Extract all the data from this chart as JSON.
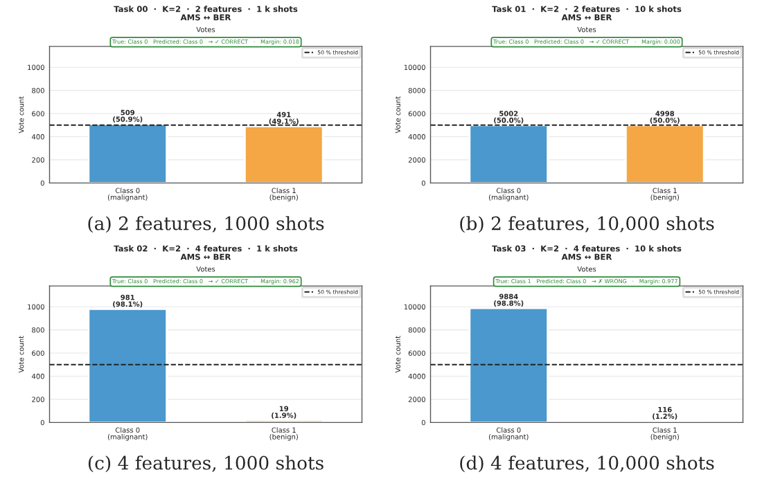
{
  "chart_data": [
    {
      "type": "bar",
      "title": "Task 00  ·  K=2  ·  2 features  ·  1 k shots\nAMS ↔ BER",
      "subtitle": "Votes",
      "ylabel": "Vote count",
      "categories": [
        "Class 0\n(malignant)",
        "Class 1\n(benign)"
      ],
      "values": [
        509,
        491
      ],
      "colors": [
        "#4a98cd",
        "#f4a744"
      ],
      "value_labels": [
        "509\n(50.9%)",
        "491\n(49.1%)"
      ],
      "ylim": [
        0,
        1180
      ],
      "yticks": [
        0,
        200,
        400,
        600,
        800,
        1000
      ],
      "grid": "y",
      "legend": "top right",
      "ref_lines": [
        {
          "axis": "y",
          "value": 500,
          "label": "50 % threshold",
          "color": "#222222",
          "line_style": "dashed"
        }
      ],
      "annotations": [
        {
          "text": "True: Class 0   Predicted: Class 0   → ✓ CORRECT   ·   Margin: 0.018"
        },
        "(a) 2 features, 1000 shots"
      ]
    },
    {
      "type": "bar",
      "title": "Task 01  ·  K=2  ·  2 features  ·  10 k shots\nAMS ↔ BER",
      "subtitle": "Votes",
      "ylabel": "Vote count",
      "categories": [
        "Class 0\n(malignant)",
        "Class 1\n(benign)"
      ],
      "values": [
        5002,
        4998
      ],
      "colors": [
        "#4a98cd",
        "#f4a744"
      ],
      "value_labels": [
        "5002\n(50.0%)",
        "4998\n(50.0%)"
      ],
      "ylim": [
        0,
        11800
      ],
      "yticks": [
        0,
        2000,
        4000,
        6000,
        8000,
        10000
      ],
      "grid": "y",
      "legend": "top right",
      "ref_lines": [
        {
          "axis": "y",
          "value": 5000,
          "label": "50 % threshold",
          "color": "#222222",
          "line_style": "dashed"
        }
      ],
      "annotations": [
        {
          "text": "True: Class 0   Predicted: Class 0   → ✓ CORRECT   ·   Margin: 0.000"
        },
        "(b) 2 features, 10,000 shots"
      ]
    },
    {
      "type": "bar",
      "title": "Task 02  ·  K=2  ·  4 features  ·  1 k shots\nAMS ↔ BER",
      "subtitle": "Votes",
      "ylabel": "Vote count",
      "categories": [
        "Class 0\n(malignant)",
        "Class 1\n(benign)"
      ],
      "values": [
        981,
        19
      ],
      "colors": [
        "#4a98cd",
        "#f4a744"
      ],
      "value_labels": [
        "981\n(98.1%)",
        "19\n(1.9%)"
      ],
      "ylim": [
        0,
        1180
      ],
      "yticks": [
        0,
        200,
        400,
        600,
        800,
        1000
      ],
      "grid": "y",
      "legend": "top right",
      "ref_lines": [
        {
          "axis": "y",
          "value": 500,
          "label": "50 % threshold",
          "color": "#222222",
          "line_style": "dashed"
        }
      ],
      "annotations": [
        {
          "text": "True: Class 0   Predicted: Class 0   → ✓ CORRECT   ·   Margin: 0.962"
        },
        "(c) 4 features, 1000 shots"
      ]
    },
    {
      "type": "bar",
      "title": "Task 03  ·  K=2  ·  4 features  ·  10 k shots\nAMS ↔ BER",
      "subtitle": "Votes",
      "ylabel": "Vote count",
      "categories": [
        "Class 0\n(malignant)",
        "Class 1\n(benign)"
      ],
      "values": [
        9884,
        116
      ],
      "colors": [
        "#4a98cd",
        "#f4a744"
      ],
      "value_labels": [
        "9884\n(98.8%)",
        "116\n(1.2%)"
      ],
      "ylim": [
        0,
        11800
      ],
      "yticks": [
        0,
        2000,
        4000,
        6000,
        8000,
        10000
      ],
      "grid": "y",
      "legend": "top right",
      "ref_lines": [
        {
          "axis": "y",
          "value": 5000,
          "label": "50 % threshold",
          "color": "#222222",
          "line_style": "dashed"
        }
      ],
      "annotations": [
        {
          "text": "True: Class 1   Predicted: Class 0   → ✗ WRONG   ·   Margin: 0.977"
        },
        "(d) 4 features, 10,000 shots"
      ]
    }
  ]
}
